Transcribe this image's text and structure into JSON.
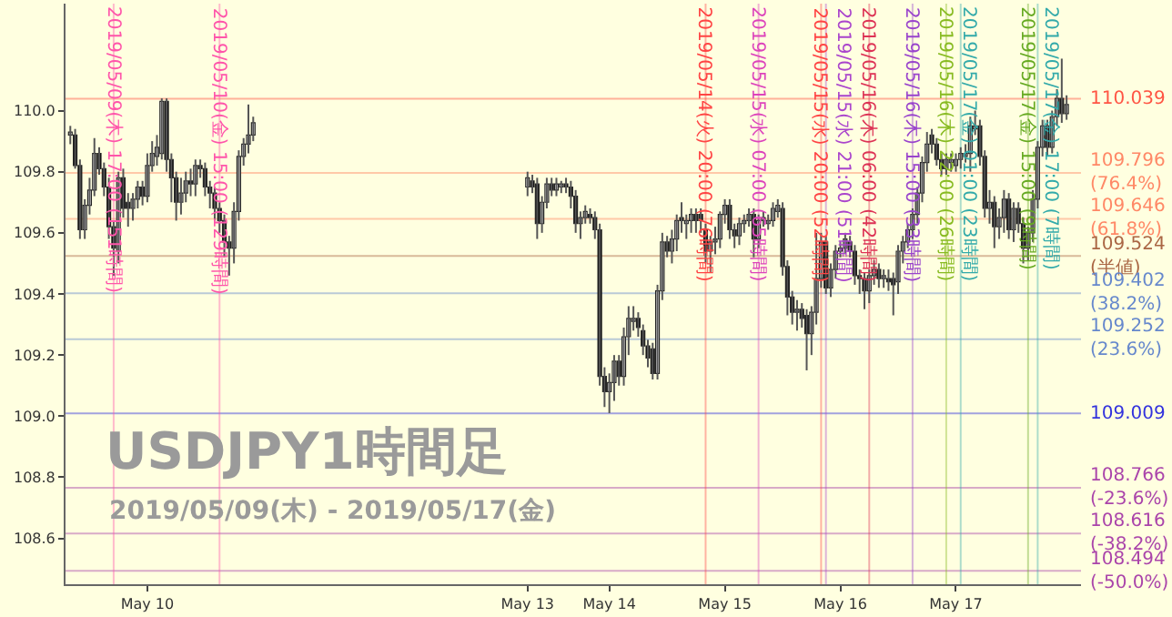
{
  "chart_data": {
    "type": "candlestick",
    "title": "USDJPY1時間足",
    "subtitle": "2019/05/09(木) - 2019/05/17(金)",
    "x": [
      "2019-05-09T08:00",
      "2019-05-09T09:00",
      "2019-05-09T10:00",
      "2019-05-09T11:00",
      "2019-05-09T12:00",
      "2019-05-09T13:00",
      "2019-05-09T14:00",
      "2019-05-09T15:00",
      "2019-05-09T16:00",
      "2019-05-09T17:00",
      "2019-05-09T18:00",
      "2019-05-09T19:00",
      "2019-05-09T20:00",
      "2019-05-09T21:00",
      "2019-05-09T22:00",
      "2019-05-09T23:00",
      "2019-05-10T00:00",
      "2019-05-10T01:00",
      "2019-05-10T02:00",
      "2019-05-10T03:00",
      "2019-05-10T04:00",
      "2019-05-10T05:00",
      "2019-05-10T06:00",
      "2019-05-10T07:00",
      "2019-05-10T08:00",
      "2019-05-10T09:00",
      "2019-05-10T10:00",
      "2019-05-10T11:00",
      "2019-05-10T12:00",
      "2019-05-10T13:00",
      "2019-05-10T14:00",
      "2019-05-10T15:00",
      "2019-05-10T16:00",
      "2019-05-10T17:00",
      "2019-05-10T18:00",
      "2019-05-10T19:00",
      "2019-05-10T20:00",
      "2019-05-10T21:00",
      "2019-05-10T22:00",
      "2019-05-13T07:00",
      "2019-05-13T08:00",
      "2019-05-13T09:00",
      "2019-05-13T10:00",
      "2019-05-13T11:00",
      "2019-05-13T12:00",
      "2019-05-13T13:00",
      "2019-05-13T14:00",
      "2019-05-13T15:00",
      "2019-05-13T16:00",
      "2019-05-13T17:00",
      "2019-05-13T18:00",
      "2019-05-13T19:00",
      "2019-05-13T20:00",
      "2019-05-13T21:00",
      "2019-05-13T22:00",
      "2019-05-13T23:00",
      "2019-05-14T00:00",
      "2019-05-14T01:00",
      "2019-05-14T02:00",
      "2019-05-14T03:00",
      "2019-05-14T04:00",
      "2019-05-14T05:00",
      "2019-05-14T06:00",
      "2019-05-14T07:00",
      "2019-05-14T08:00",
      "2019-05-14T09:00",
      "2019-05-14T10:00",
      "2019-05-14T11:00",
      "2019-05-14T12:00",
      "2019-05-14T13:00",
      "2019-05-14T14:00",
      "2019-05-14T15:00",
      "2019-05-14T16:00",
      "2019-05-14T17:00",
      "2019-05-14T18:00",
      "2019-05-14T19:00",
      "2019-05-14T20:00",
      "2019-05-14T21:00",
      "2019-05-14T22:00",
      "2019-05-14T23:00",
      "2019-05-15T00:00",
      "2019-05-15T01:00",
      "2019-05-15T02:00",
      "2019-05-15T03:00",
      "2019-05-15T04:00",
      "2019-05-15T05:00",
      "2019-05-15T06:00",
      "2019-05-15T07:00",
      "2019-05-15T08:00",
      "2019-05-15T09:00",
      "2019-05-15T10:00",
      "2019-05-15T11:00",
      "2019-05-15T12:00",
      "2019-05-15T13:00",
      "2019-05-15T14:00",
      "2019-05-15T15:00",
      "2019-05-15T16:00",
      "2019-05-15T17:00",
      "2019-05-15T18:00",
      "2019-05-15T19:00",
      "2019-05-15T20:00",
      "2019-05-15T21:00",
      "2019-05-15T22:00",
      "2019-05-15T23:00",
      "2019-05-16T00:00",
      "2019-05-16T01:00",
      "2019-05-16T02:00",
      "2019-05-16T03:00",
      "2019-05-16T04:00",
      "2019-05-16T05:00",
      "2019-05-16T06:00",
      "2019-05-16T07:00",
      "2019-05-16T08:00",
      "2019-05-16T09:00",
      "2019-05-16T10:00",
      "2019-05-16T11:00",
      "2019-05-16T12:00",
      "2019-05-16T13:00",
      "2019-05-16T14:00",
      "2019-05-16T15:00",
      "2019-05-16T16:00",
      "2019-05-16T17:00",
      "2019-05-16T18:00",
      "2019-05-16T19:00",
      "2019-05-16T20:00",
      "2019-05-16T21:00",
      "2019-05-16T22:00",
      "2019-05-16T23:00",
      "2019-05-17T00:00",
      "2019-05-17T01:00",
      "2019-05-17T02:00",
      "2019-05-17T03:00",
      "2019-05-17T04:00",
      "2019-05-17T05:00",
      "2019-05-17T06:00",
      "2019-05-17T07:00",
      "2019-05-17T08:00",
      "2019-05-17T09:00",
      "2019-05-17T10:00",
      "2019-05-17T11:00",
      "2019-05-17T12:00",
      "2019-05-17T13:00",
      "2019-05-17T14:00",
      "2019-05-17T15:00",
      "2019-05-17T16:00",
      "2019-05-17T17:00",
      "2019-05-17T18:00",
      "2019-05-17T19:00",
      "2019-05-17T20:00",
      "2019-05-17T21:00",
      "2019-05-17T22:00",
      "2019-05-17T23:00"
    ],
    "ohlc": [
      [
        109.92,
        109.95,
        109.89,
        109.93
      ],
      [
        109.92,
        109.94,
        109.81,
        109.82
      ],
      [
        109.82,
        109.84,
        109.58,
        109.61
      ],
      [
        109.61,
        109.71,
        109.58,
        109.69
      ],
      [
        109.69,
        109.78,
        109.66,
        109.74
      ],
      [
        109.74,
        109.91,
        109.72,
        109.86
      ],
      [
        109.86,
        109.88,
        109.79,
        109.81
      ],
      [
        109.81,
        109.83,
        109.72,
        109.75
      ],
      [
        109.75,
        109.78,
        109.58,
        109.62
      ],
      [
        109.62,
        109.64,
        109.46,
        109.55
      ],
      [
        109.54,
        109.8,
        109.5,
        109.78
      ],
      [
        109.78,
        109.81,
        109.65,
        109.68
      ],
      [
        109.7,
        109.73,
        109.62,
        109.68
      ],
      [
        109.68,
        109.73,
        109.64,
        109.71
      ],
      [
        109.71,
        109.77,
        109.68,
        109.75
      ],
      [
        109.75,
        109.77,
        109.69,
        109.72
      ],
      [
        109.72,
        109.86,
        109.7,
        109.82
      ],
      [
        109.82,
        109.9,
        109.8,
        109.86
      ],
      [
        109.85,
        109.92,
        109.82,
        109.88
      ],
      [
        109.86,
        110.04,
        109.84,
        110.03
      ],
      [
        110.03,
        110.04,
        109.8,
        109.84
      ],
      [
        109.84,
        109.86,
        109.7,
        109.78
      ],
      [
        109.78,
        109.8,
        109.64,
        109.7
      ],
      [
        109.7,
        109.78,
        109.66,
        109.73
      ],
      [
        109.73,
        109.8,
        109.7,
        109.77
      ],
      [
        109.77,
        109.81,
        109.72,
        109.76
      ],
      [
        109.76,
        109.84,
        109.72,
        109.82
      ],
      [
        109.82,
        109.84,
        109.78,
        109.81
      ],
      [
        109.81,
        109.83,
        109.72,
        109.75
      ],
      [
        109.75,
        109.77,
        109.68,
        109.73
      ],
      [
        109.73,
        109.75,
        109.64,
        109.68
      ],
      [
        109.68,
        109.7,
        109.6,
        109.64
      ],
      [
        109.64,
        109.66,
        109.52,
        109.57
      ],
      [
        109.57,
        109.59,
        109.46,
        109.55
      ],
      [
        109.55,
        109.7,
        109.5,
        109.67
      ],
      [
        109.67,
        109.87,
        109.64,
        109.85
      ],
      [
        109.85,
        109.91,
        109.82,
        109.89
      ],
      [
        109.89,
        110.02,
        109.86,
        109.92
      ],
      [
        109.92,
        109.98,
        109.9,
        109.96
      ],
      [
        109.75,
        109.8,
        109.72,
        109.78
      ],
      [
        109.77,
        109.79,
        109.73,
        109.75
      ],
      [
        109.76,
        109.78,
        109.58,
        109.63
      ],
      [
        109.63,
        109.72,
        109.6,
        109.7
      ],
      [
        109.7,
        109.78,
        109.68,
        109.76
      ],
      [
        109.76,
        109.78,
        109.72,
        109.74
      ],
      [
        109.74,
        109.78,
        109.72,
        109.76
      ],
      [
        109.75,
        109.77,
        109.73,
        109.76
      ],
      [
        109.76,
        109.78,
        109.73,
        109.75
      ],
      [
        109.75,
        109.77,
        109.68,
        109.72
      ],
      [
        109.72,
        109.74,
        109.6,
        109.63
      ],
      [
        109.63,
        109.67,
        109.58,
        109.65
      ],
      [
        109.65,
        109.69,
        109.63,
        109.67
      ],
      [
        109.66,
        109.68,
        109.63,
        109.65
      ],
      [
        109.65,
        109.67,
        109.58,
        109.61
      ],
      [
        109.61,
        109.63,
        109.1,
        109.13
      ],
      [
        109.13,
        109.16,
        109.03,
        109.08
      ],
      [
        109.08,
        109.14,
        109.01,
        109.11
      ],
      [
        109.11,
        109.2,
        109.05,
        109.18
      ],
      [
        109.18,
        109.2,
        109.1,
        109.13
      ],
      [
        109.13,
        109.29,
        109.1,
        109.26
      ],
      [
        109.26,
        109.36,
        109.2,
        109.32
      ],
      [
        109.31,
        109.36,
        109.28,
        109.32
      ],
      [
        109.32,
        109.34,
        109.26,
        109.29
      ],
      [
        109.28,
        109.3,
        109.2,
        109.23
      ],
      [
        109.23,
        109.25,
        109.16,
        109.19
      ],
      [
        109.22,
        109.24,
        109.12,
        109.14
      ],
      [
        109.14,
        109.43,
        109.12,
        109.41
      ],
      [
        109.41,
        109.6,
        109.38,
        109.57
      ],
      [
        109.57,
        109.59,
        109.52,
        109.54
      ],
      [
        109.54,
        109.61,
        109.5,
        109.58
      ],
      [
        109.58,
        109.66,
        109.54,
        109.64
      ],
      [
        109.65,
        109.7,
        109.6,
        109.64
      ],
      [
        109.63,
        109.66,
        109.58,
        109.64
      ],
      [
        109.64,
        109.68,
        109.6,
        109.66
      ],
      [
        109.66,
        109.68,
        109.6,
        109.64
      ],
      [
        109.66,
        109.68,
        109.6,
        109.64
      ],
      [
        109.61,
        109.63,
        109.5,
        109.54
      ],
      [
        109.54,
        109.59,
        109.47,
        109.57
      ],
      [
        109.57,
        109.62,
        109.53,
        109.58
      ],
      [
        109.58,
        109.67,
        109.55,
        109.66
      ],
      [
        109.66,
        109.71,
        109.63,
        109.69
      ],
      [
        109.69,
        109.71,
        109.58,
        109.61
      ],
      [
        109.61,
        109.63,
        109.55,
        109.59
      ],
      [
        109.59,
        109.65,
        109.56,
        109.63
      ],
      [
        109.63,
        109.66,
        109.6,
        109.64
      ],
      [
        109.64,
        109.68,
        109.62,
        109.66
      ],
      [
        109.66,
        109.68,
        109.52,
        109.58
      ],
      [
        109.58,
        109.66,
        109.55,
        109.64
      ],
      [
        109.64,
        109.67,
        109.62,
        109.65
      ],
      [
        109.63,
        109.66,
        109.61,
        109.64
      ],
      [
        109.64,
        109.7,
        109.62,
        109.68
      ],
      [
        109.67,
        109.71,
        109.65,
        109.69
      ],
      [
        109.68,
        109.7,
        109.46,
        109.49
      ],
      [
        109.49,
        109.51,
        109.33,
        109.39
      ],
      [
        109.39,
        109.41,
        109.3,
        109.34
      ],
      [
        109.34,
        109.38,
        109.28,
        109.35
      ],
      [
        109.35,
        109.37,
        109.29,
        109.32
      ],
      [
        109.33,
        109.35,
        109.15,
        109.27
      ],
      [
        109.27,
        109.36,
        109.2,
        109.34
      ],
      [
        109.34,
        109.6,
        109.3,
        109.45
      ],
      [
        109.45,
        109.6,
        109.42,
        109.57
      ],
      [
        109.57,
        109.59,
        109.4,
        109.42
      ],
      [
        109.42,
        109.5,
        109.39,
        109.48
      ],
      [
        109.48,
        109.56,
        109.45,
        109.54
      ],
      [
        109.54,
        109.57,
        109.52,
        109.55
      ],
      [
        109.55,
        109.6,
        109.53,
        109.58
      ],
      [
        109.57,
        109.59,
        109.52,
        109.54
      ],
      [
        109.54,
        109.56,
        109.43,
        109.46
      ],
      [
        109.46,
        109.48,
        109.4,
        109.45
      ],
      [
        109.45,
        109.47,
        109.35,
        109.41
      ],
      [
        109.41,
        109.48,
        109.37,
        109.46
      ],
      [
        109.46,
        109.51,
        109.43,
        109.48
      ],
      [
        109.48,
        109.5,
        109.42,
        109.45
      ],
      [
        109.45,
        109.48,
        109.42,
        109.46
      ],
      [
        109.45,
        109.48,
        109.41,
        109.44
      ],
      [
        109.45,
        109.47,
        109.33,
        109.43
      ],
      [
        109.44,
        109.56,
        109.4,
        109.54
      ],
      [
        109.54,
        109.59,
        109.5,
        109.57
      ],
      [
        109.57,
        109.63,
        109.55,
        109.61
      ],
      [
        109.61,
        109.68,
        109.58,
        109.66
      ],
      [
        109.66,
        109.75,
        109.63,
        109.73
      ],
      [
        109.73,
        109.85,
        109.7,
        109.83
      ],
      [
        109.83,
        109.93,
        109.8,
        109.89
      ],
      [
        109.92,
        109.94,
        109.86,
        109.89
      ],
      [
        109.89,
        109.91,
        109.82,
        109.84
      ],
      [
        109.84,
        109.86,
        109.79,
        109.81
      ],
      [
        109.81,
        109.86,
        109.79,
        109.84
      ],
      [
        109.83,
        109.86,
        109.8,
        109.84
      ],
      [
        109.82,
        109.86,
        109.8,
        109.84
      ],
      [
        109.84,
        109.88,
        109.81,
        109.86
      ],
      [
        109.85,
        109.89,
        109.83,
        109.86
      ],
      [
        109.86,
        109.98,
        109.8,
        109.95
      ],
      [
        109.94,
        110.0,
        109.92,
        109.95
      ],
      [
        109.95,
        109.97,
        109.82,
        109.85
      ],
      [
        109.85,
        109.87,
        109.65,
        109.68
      ],
      [
        109.68,
        109.74,
        109.63,
        109.7
      ],
      [
        109.7,
        109.72,
        109.55,
        109.62
      ],
      [
        109.62,
        109.68,
        109.58,
        109.65
      ],
      [
        109.65,
        109.74,
        109.6,
        109.71
      ],
      [
        109.71,
        109.73,
        109.58,
        109.61
      ],
      [
        109.61,
        109.7,
        109.57,
        109.68
      ],
      [
        109.68,
        109.7,
        109.6,
        109.63
      ],
      [
        109.63,
        109.65,
        109.5,
        109.55
      ],
      [
        109.55,
        109.62,
        109.51,
        109.6
      ],
      [
        109.6,
        109.74,
        109.57,
        109.71
      ],
      [
        109.71,
        109.9,
        109.68,
        109.88
      ],
      [
        109.88,
        109.97,
        109.85,
        109.95
      ],
      [
        109.95,
        109.97,
        109.85,
        109.88
      ],
      [
        109.88,
        110.0,
        109.86,
        109.98
      ],
      [
        109.98,
        110.07,
        109.95,
        110.04
      ],
      [
        110.04,
        110.17,
        109.96,
        109.99
      ],
      [
        109.99,
        110.05,
        109.97,
        110.02
      ]
    ],
    "xlim": [
      "2019-05-09T07:00",
      "2019-05-18T02:00"
    ],
    "xticks": [
      {
        "value": "2019-05-10",
        "label": "May 10"
      },
      {
        "value": "2019-05-13T07:00",
        "label": "May 13"
      },
      {
        "value": "2019-05-14",
        "label": "May 14"
      },
      {
        "value": "2019-05-15",
        "label": "May 15"
      },
      {
        "value": "2019-05-16",
        "label": "May 16"
      },
      {
        "value": "2019-05-17",
        "label": "May 17"
      }
    ],
    "ylim": [
      108.45,
      110.35
    ],
    "yticks": [
      {
        "value": 108.6,
        "label": "108.6"
      },
      {
        "value": 108.8,
        "label": "108.8"
      },
      {
        "value": 109,
        "label": "109.0"
      },
      {
        "value": 109.2,
        "label": "109.2"
      },
      {
        "value": 109.4,
        "label": "109.4"
      },
      {
        "value": 109.6,
        "label": "109.6"
      },
      {
        "value": 109.8,
        "label": "109.8"
      },
      {
        "value": 110,
        "label": "110.0"
      }
    ],
    "grid": false,
    "ref_lines": [
      {
        "axis": "y",
        "value": 110.039,
        "label": "110.039",
        "color": "#ff5544"
      },
      {
        "axis": "y",
        "value": 109.796,
        "label": "109.796\n(76.4%)",
        "color": "#ff8866"
      },
      {
        "axis": "y",
        "value": 109.646,
        "label": "109.646\n(61.8%)",
        "color": "#ff8866"
      },
      {
        "axis": "y",
        "value": 109.524,
        "label": "109.524\n(半値)",
        "color": "#aa6644"
      },
      {
        "axis": "y",
        "value": 109.402,
        "label": "109.402\n(38.2%)",
        "color": "#6688cc"
      },
      {
        "axis": "y",
        "value": 109.252,
        "label": "109.252\n(23.6%)",
        "color": "#6688cc"
      },
      {
        "axis": "y",
        "value": 109.009,
        "label": "109.009",
        "color": "#3333dd"
      },
      {
        "axis": "y",
        "value": 108.766,
        "label": "108.766\n(-23.6%)",
        "color": "#aa44aa"
      },
      {
        "axis": "y",
        "value": 108.616,
        "label": "108.616\n(-38.2%)",
        "color": "#aa44aa"
      },
      {
        "axis": "y",
        "value": 108.494,
        "label": "108.494\n(-50.0%)",
        "color": "#aa44aa"
      },
      {
        "axis": "x",
        "value": "2019-05-09T17:00",
        "label": "2019/05/09(木) 17:00 (151時間)",
        "color": "#ff55aa"
      },
      {
        "axis": "x",
        "value": "2019-05-10T15:00",
        "label": "2019/05/10(金) 15:00 (129時間)",
        "color": "#ff55aa"
      },
      {
        "axis": "x",
        "value": "2019-05-14T20:00",
        "label": "2019/05/14(火) 20:00 (76時間)",
        "color": "#ff4444"
      },
      {
        "axis": "x",
        "value": "2019-05-15T07:00",
        "label": "2019/05/15(水) 07:00 (65時間)",
        "color": "#dd44bb"
      },
      {
        "axis": "x",
        "value": "2019-05-15T20:00",
        "label": "2019/05/15(水) 20:00 (52時間)",
        "color": "#ff4444"
      },
      {
        "axis": "x",
        "value": "2019-05-15T21:00",
        "label": "2019/05/15(水) 21:00 (51時間)",
        "color": "#aa44cc"
      },
      {
        "axis": "x",
        "value": "2019-05-16T06:00",
        "label": "2019/05/16(木) 06:00 (42時間)",
        "color": "#dd3355"
      },
      {
        "axis": "x",
        "value": "2019-05-16T15:00",
        "label": "2019/05/16(木) 15:00 (33時間)",
        "color": "#9944cc"
      },
      {
        "axis": "x",
        "value": "2019-05-16T22:00",
        "label": "2019/05/16(木) 22:00 (26時間)",
        "color": "#88bb22"
      },
      {
        "axis": "x",
        "value": "2019-05-17T01:00",
        "label": "2019/05/17(金) 01:00 (23時間)",
        "color": "#33aaaa"
      },
      {
        "axis": "x",
        "value": "2019-05-17T15:00",
        "label": "2019/05/17(金) 15:00 (9時間)",
        "color": "#66aa22"
      },
      {
        "axis": "x",
        "value": "2019-05-17T17:00",
        "label": "2019/05/17(金) 17:00 (7時間)",
        "color": "#33aaaa"
      }
    ]
  }
}
